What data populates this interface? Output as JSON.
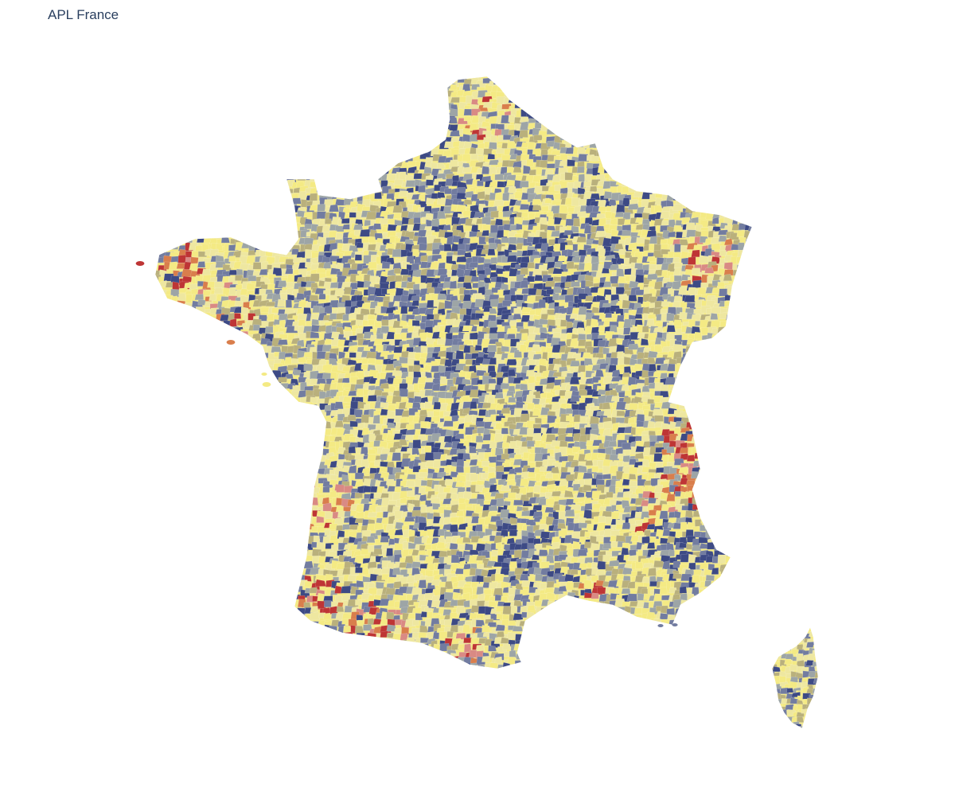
{
  "title": "APL France",
  "colors": {
    "dark_blue": "#3d4a85",
    "blue_grey": "#727ca0",
    "grey": "#9da5a6",
    "olive": "#b9b07c",
    "pale_yellow": "#eee7a0",
    "yellow": "#f4ea84",
    "pink": "#d98a84",
    "orange": "#d97e4c",
    "red": "#be3535",
    "border": "#ffffff",
    "title_text": "#2a3f5f"
  }
}
